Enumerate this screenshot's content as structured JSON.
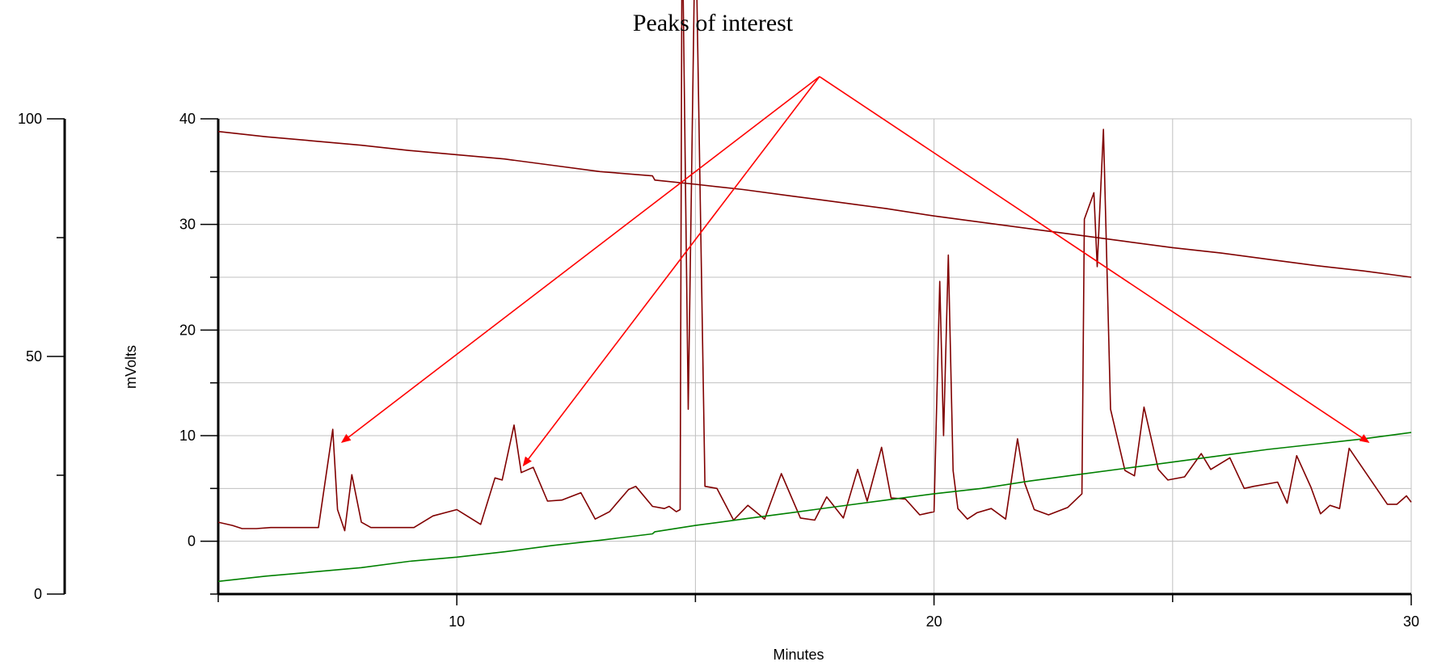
{
  "chart_data": {
    "type": "line",
    "title": "",
    "annotation": "Peaks of interest",
    "xlabel": "Minutes",
    "ylabel": "mVolts",
    "xlim": [
      5,
      30
    ],
    "ylim": [
      -5,
      40
    ],
    "left_axis": {
      "ylim": [
        0,
        100
      ],
      "ticks": [
        "0",
        "50",
        "100"
      ]
    },
    "x_ticks": [
      "10",
      "20",
      "30"
    ],
    "y_ticks": [
      "0",
      "10",
      "20",
      "30",
      "40"
    ],
    "grid": true,
    "colors": {
      "chromatogram": "#800000",
      "gradient_down": "#800000",
      "gradient_up": "#008000",
      "arrows": "#ff0000",
      "grid": "#c0c0c0"
    },
    "series": [
      {
        "id": "chromatogram",
        "x": [
          5.0,
          5.3,
          5.5,
          5.8,
          6.1,
          6.3,
          6.5,
          7.1,
          7.4,
          7.5,
          7.65,
          7.8,
          8.0,
          8.2,
          8.5,
          8.62,
          8.8,
          9.1,
          9.5,
          10.0,
          10.5,
          10.8,
          10.95,
          11.2,
          11.35,
          11.6,
          11.9,
          12.2,
          12.6,
          12.9,
          13.2,
          13.6,
          13.75,
          14.1,
          14.35,
          14.45,
          14.6,
          14.68,
          14.72,
          14.85,
          15.0,
          15.2,
          15.45,
          15.8,
          16.1,
          16.45,
          16.8,
          17.2,
          17.5,
          17.75,
          18.1,
          18.4,
          18.6,
          18.9,
          19.1,
          19.4,
          19.7,
          20.0,
          20.12,
          20.2,
          20.3,
          20.4,
          20.5,
          20.7,
          20.9,
          21.2,
          21.5,
          21.75,
          21.9,
          22.1,
          22.4,
          22.8,
          23.1,
          23.15,
          23.35,
          23.42,
          23.55,
          23.7,
          24.0,
          24.2,
          24.4,
          24.7,
          24.9,
          25.25,
          25.6,
          25.8,
          26.2,
          26.5,
          26.7,
          27.2,
          27.4,
          27.6,
          27.9,
          28.1,
          28.3,
          28.5,
          28.7,
          29.5,
          29.7,
          29.9,
          30.0
        ],
        "y": [
          1.8,
          1.5,
          1.2,
          1.2,
          1.3,
          1.3,
          1.3,
          1.3,
          10.6,
          3.0,
          1.0,
          6.3,
          1.8,
          1.3,
          1.3,
          1.3,
          1.3,
          1.3,
          2.4,
          3.0,
          1.6,
          6.0,
          5.8,
          11.0,
          6.5,
          7.0,
          3.8,
          3.9,
          4.6,
          2.1,
          2.8,
          4.9,
          5.2,
          3.3,
          3.1,
          3.3,
          2.8,
          3.0,
          60,
          12.5,
          60,
          5.2,
          5.0,
          2.0,
          3.4,
          2.1,
          6.4,
          2.2,
          2.0,
          4.2,
          2.2,
          6.8,
          3.8,
          8.9,
          4.1,
          4.0,
          2.5,
          2.8,
          24.6,
          10.0,
          27.1,
          6.7,
          3.1,
          2.1,
          2.7,
          3.1,
          2.1,
          9.7,
          5.5,
          3.0,
          2.5,
          3.2,
          4.5,
          30.5,
          33.0,
          26.0,
          39.0,
          12.5,
          6.7,
          6.2,
          12.7,
          6.8,
          5.8,
          6.1,
          8.3,
          6.8,
          7.9,
          5.0,
          5.2,
          5.6,
          3.6,
          8.1,
          5.1,
          2.6,
          3.4,
          3.1,
          8.8,
          3.5,
          3.5,
          4.3,
          3.7
        ]
      },
      {
        "id": "gradient_down",
        "x": [
          5,
          6,
          7,
          8,
          9,
          10,
          11,
          12,
          13,
          14.1,
          14.15,
          15,
          16,
          17,
          18,
          19,
          20,
          21,
          22,
          23,
          24,
          25,
          26,
          27,
          28,
          29,
          30
        ],
        "y": [
          38.8,
          38.3,
          37.9,
          37.5,
          37.0,
          36.6,
          36.2,
          35.6,
          35.0,
          34.6,
          34.2,
          33.8,
          33.3,
          32.7,
          32.1,
          31.5,
          30.8,
          30.2,
          29.6,
          29.0,
          28.4,
          27.8,
          27.3,
          26.7,
          26.1,
          25.6,
          25.0
        ]
      },
      {
        "id": "gradient_up",
        "x": [
          5,
          6,
          7,
          8,
          9,
          10,
          11,
          12,
          13,
          14.1,
          14.15,
          15,
          16,
          17,
          18,
          19,
          20,
          21,
          22,
          23,
          24,
          25,
          26,
          27,
          28,
          29,
          30
        ],
        "y": [
          -3.8,
          -3.3,
          -2.9,
          -2.5,
          -1.9,
          -1.5,
          -1.0,
          -0.4,
          0.1,
          0.7,
          0.9,
          1.5,
          2.1,
          2.7,
          3.3,
          3.9,
          4.5,
          5.0,
          5.7,
          6.3,
          6.9,
          7.5,
          8.1,
          8.7,
          9.2,
          9.7,
          10.3
        ]
      }
    ],
    "arrows": [
      {
        "from": [
          17.6,
          44.0
        ],
        "to": [
          7.6,
          9.4
        ]
      },
      {
        "from": [
          17.6,
          44.0
        ],
        "to": [
          11.4,
          7.2
        ]
      },
      {
        "from": [
          17.6,
          44.0
        ],
        "to": [
          29.1,
          9.4
        ]
      }
    ]
  }
}
